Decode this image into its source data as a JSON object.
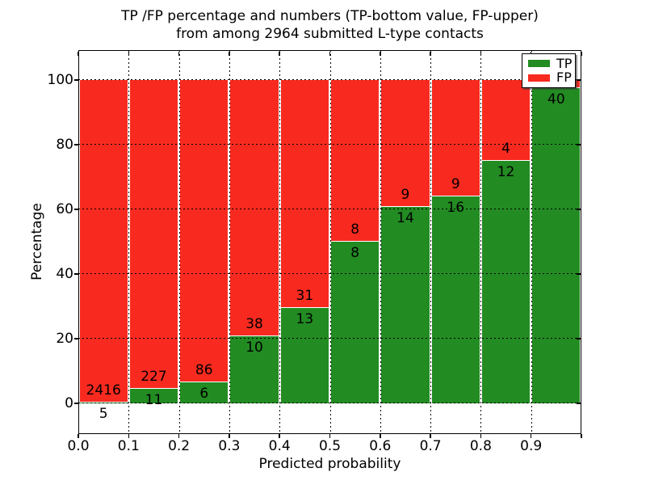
{
  "title": {
    "line1": "TP /FP percentage and numbers (TP-bottom value, FP-upper)",
    "line2": "from among 2964 submitted L-type contacts"
  },
  "axes": {
    "xlabel": "Predicted probability",
    "ylabel": "Percentage",
    "x_tick_labels": [
      "0.0",
      "0.1",
      "0.2",
      "0.3",
      "0.4",
      "0.5",
      "0.6",
      "0.7",
      "0.8",
      "0.9"
    ],
    "y_tick_labels": [
      "0",
      "20",
      "40",
      "60",
      "80",
      "100"
    ],
    "y_tick_values": [
      0,
      20,
      40,
      60,
      80,
      100
    ],
    "xlim": [
      0.0,
      1.0
    ],
    "ylim": [
      -9.5,
      109.5
    ],
    "grid_style": "dotted"
  },
  "legend": {
    "position": "upper-right",
    "entries": [
      {
        "label": "TP",
        "color": "#228b22"
      },
      {
        "label": "FP",
        "color": "#f82a1f"
      }
    ]
  },
  "chart_data": {
    "type": "bar",
    "stacked": true,
    "title": "TP /FP percentage and numbers (TP-bottom value, FP-upper) from among 2964 submitted L-type contacts",
    "xlabel": "Predicted probability",
    "ylabel": "Percentage",
    "total_contacts": 2964,
    "bins": [
      "0.0-0.1",
      "0.1-0.2",
      "0.2-0.3",
      "0.3-0.4",
      "0.4-0.5",
      "0.5-0.6",
      "0.6-0.7",
      "0.7-0.8",
      "0.8-0.9",
      "0.9-1.0"
    ],
    "series": [
      {
        "name": "TP",
        "color": "#228b22",
        "counts": [
          5,
          11,
          6,
          10,
          13,
          8,
          14,
          16,
          12,
          40
        ]
      },
      {
        "name": "FP",
        "color": "#f82a1f",
        "counts": [
          2416,
          227,
          86,
          38,
          31,
          8,
          9,
          9,
          4,
          1
        ]
      }
    ],
    "tp_percent": [
      0.21,
      4.62,
      6.52,
      20.83,
      29.55,
      50.0,
      60.87,
      64.0,
      75.0,
      97.56
    ],
    "fp_percent": [
      99.79,
      95.38,
      93.48,
      79.17,
      70.45,
      50.0,
      39.13,
      36.0,
      25.0,
      2.44
    ],
    "fp_labels": [
      "2416",
      "227",
      "86",
      "38",
      "31",
      "8",
      "9",
      "9",
      "4",
      ""
    ],
    "tp_labels": [
      "5",
      "11",
      "6",
      "10",
      "13",
      "8",
      "14",
      "16",
      "12",
      "40"
    ],
    "colors": {
      "tp": "#228b22",
      "fp": "#f82a1f",
      "grid": "#000000",
      "background": "#ffffff"
    }
  }
}
